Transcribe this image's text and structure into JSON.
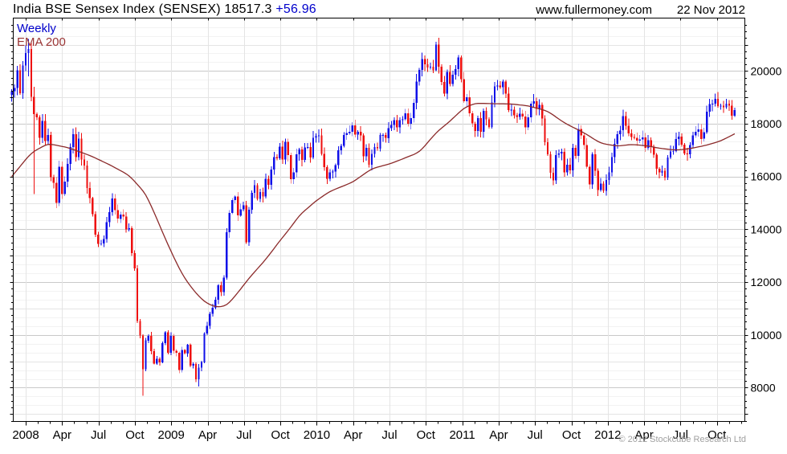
{
  "header": {
    "title": "India BSE Sensex Index (SENSEX) 18517.3",
    "change": "+56.96",
    "website": "www.fullermoney.com",
    "date": "22 Nov 2012"
  },
  "legend": {
    "timeframe": "Weekly",
    "indicator": "EMA 200"
  },
  "footer": {
    "copyright": "© 2012 Stockcube Research Ltd"
  },
  "chart_data": {
    "type": "candlestick",
    "title": "India BSE Sensex Index (SENSEX)",
    "frequency": "Weekly",
    "last_close": 18517.3,
    "change": 56.96,
    "overlay": "EMA 200",
    "date_shown": "22 Nov 2012",
    "ylim": [
      6720,
      22005
    ],
    "y_tick_labels": [
      8000,
      10000,
      12000,
      14000,
      16000,
      18000,
      20000
    ],
    "y_gridline_step": 1000,
    "y_minor_tick_step": 250,
    "x_labels": [
      "2008",
      "Apr",
      "Jul",
      "Oct",
      "2009",
      "Apr",
      "Jul",
      "Oct",
      "2010",
      "Apr",
      "Jul",
      "Oct",
      "2011",
      "Apr",
      "Jul",
      "Oct",
      "2012",
      "Apr",
      "Jul",
      "Oct"
    ],
    "x_months_per_label": 3,
    "grid": true,
    "legend_position": "top-left",
    "colors": {
      "up": "#1010e8",
      "down": "#ee0e0e",
      "ema": "#8b2a2a",
      "grid_major": "#c9c9c9",
      "grid_mid": "#e4e4e4",
      "grid_minor": "#f2f2f2",
      "grid_vertical": "#e4e4e4",
      "axis": "#000000",
      "title_change": "#0000cc",
      "legend_weekly": "#0000cc",
      "legend_ema": "#993333",
      "copyright": "#a0a0a0"
    },
    "first_open": 19100,
    "weekly_closes": [
      19234,
      19363,
      20030,
      19162,
      20207,
      20687,
      20827,
      19014,
      18361,
      18242,
      17464,
      18115,
      17349,
      17578,
      15975,
      15760,
      14995,
      16371,
      15343,
      15807,
      16481,
      17125,
      17600,
      16737,
      17434,
      16650,
      16415,
      15572,
      15189,
      14571,
      13802,
      13454,
      13469,
      13635,
      14274,
      14656,
      15167,
      14724,
      14401,
      14564,
      14483,
      14000,
      14042,
      13102,
      12526,
      10528,
      9975,
      8701,
      9788,
      9964,
      9385,
      8915,
      9093,
      8965,
      9690,
      10100,
      9329,
      9958,
      9407,
      9323,
      8674,
      9424,
      9301,
      9635,
      8843,
      8892,
      8326,
      8757,
      8966,
      10049,
      10349,
      10804,
      11023,
      11329,
      11876,
      11621,
      12173,
      13887,
      14625,
      15104,
      15238,
      14522,
      14765,
      14913,
      13504,
      14745,
      15379,
      15670,
      15160,
      15411,
      15241,
      15922,
      15689,
      16264,
      16742,
      16693,
      17135,
      16643,
      17323,
      16810,
      15896,
      16158,
      16849,
      17021,
      16632,
      17101,
      17119,
      16719,
      17464,
      17540,
      17554,
      16859,
      16357,
      15916,
      16152,
      16191,
      16429,
      16994,
      17166,
      17578,
      17644,
      17692,
      17933,
      17591,
      17694,
      17559,
      16769,
      17086,
      16445,
      16863,
      17117,
      17064,
      17571,
      17574,
      17461,
      17834,
      17956,
      18131,
      17868,
      18144,
      18167,
      18402,
      17998,
      18221,
      18800,
      19595,
      20045,
      20445,
      20250,
      20125,
      20166,
      20032,
      21005,
      20157,
      19585,
      19137,
      19967,
      19508,
      19865,
      20074,
      20509,
      19692,
      18860,
      19008,
      18396,
      18008,
      17729,
      18212,
      17700,
      18486,
      18174,
      17878,
      18815,
      19420,
      19451,
      19386,
      19602,
      19136,
      18519,
      18531,
      18326,
      18266,
      18376,
      18268,
      17870,
      18240,
      18762,
      18858,
      18562,
      18722,
      18197,
      17306,
      16840,
      16142,
      15849,
      16821,
      16867,
      16934,
      16162,
      16454,
      16233,
      17083,
      16786,
      17805,
      17562,
      17193,
      16372,
      15696,
      16847,
      16213,
      15491,
      15739,
      15455,
      15868,
      16155,
      16739,
      17234,
      17605,
      17749,
      18289,
      17924,
      17637,
      17503,
      17466,
      17362,
      17404,
      17486,
      17094,
      17374,
      17134,
      16831,
      16293,
      16152,
      16218,
      15965,
      16719,
      16950,
      16972,
      17430,
      17521,
      17214,
      16877,
      16840,
      17197,
      17558,
      17691,
      17783,
      17430,
      17684,
      18464,
      18752,
      18763,
      18938,
      18675,
      18682,
      18626,
      18755,
      18684,
      18309,
      18517.3
    ],
    "wick_overrides": {
      "6": [
        21206,
        19800
      ],
      "8": [
        19400,
        15332
      ],
      "47": [
        10028,
        7697
      ],
      "67": [
        8900,
        8047
      ],
      "77": [
        14050,
        12090
      ],
      "152": [
        21109,
        20000
      ],
      "252": [
        19137,
        18650
      ],
      "259": [
        18610,
        18255
      ]
    },
    "ema_anchors": [
      [
        0,
        16000
      ],
      [
        7,
        16900
      ],
      [
        13,
        17250
      ],
      [
        20,
        17100
      ],
      [
        28,
        16800
      ],
      [
        35,
        16450
      ],
      [
        42,
        16050
      ],
      [
        48,
        15350
      ],
      [
        52,
        14400
      ],
      [
        56,
        13400
      ],
      [
        61,
        12300
      ],
      [
        65,
        11700
      ],
      [
        69,
        11250
      ],
      [
        73,
        11050
      ],
      [
        77,
        11100
      ],
      [
        81,
        11600
      ],
      [
        85,
        12150
      ],
      [
        91,
        12860
      ],
      [
        96,
        13560
      ],
      [
        100,
        14080
      ],
      [
        103,
        14530
      ],
      [
        109,
        15080
      ],
      [
        114,
        15440
      ],
      [
        122,
        15780
      ],
      [
        129,
        16300
      ],
      [
        136,
        16500
      ],
      [
        146,
        16920
      ],
      [
        152,
        17660
      ],
      [
        157,
        18100
      ],
      [
        162,
        18600
      ],
      [
        166,
        18780
      ],
      [
        173,
        18760
      ],
      [
        179,
        18750
      ],
      [
        185,
        18680
      ],
      [
        192,
        18480
      ],
      [
        198,
        18030
      ],
      [
        205,
        17660
      ],
      [
        211,
        17260
      ],
      [
        217,
        17150
      ],
      [
        222,
        17220
      ],
      [
        228,
        17160
      ],
      [
        232,
        17070
      ],
      [
        238,
        17000
      ],
      [
        243,
        17060
      ],
      [
        249,
        17190
      ],
      [
        254,
        17350
      ],
      [
        259,
        17620
      ]
    ]
  }
}
